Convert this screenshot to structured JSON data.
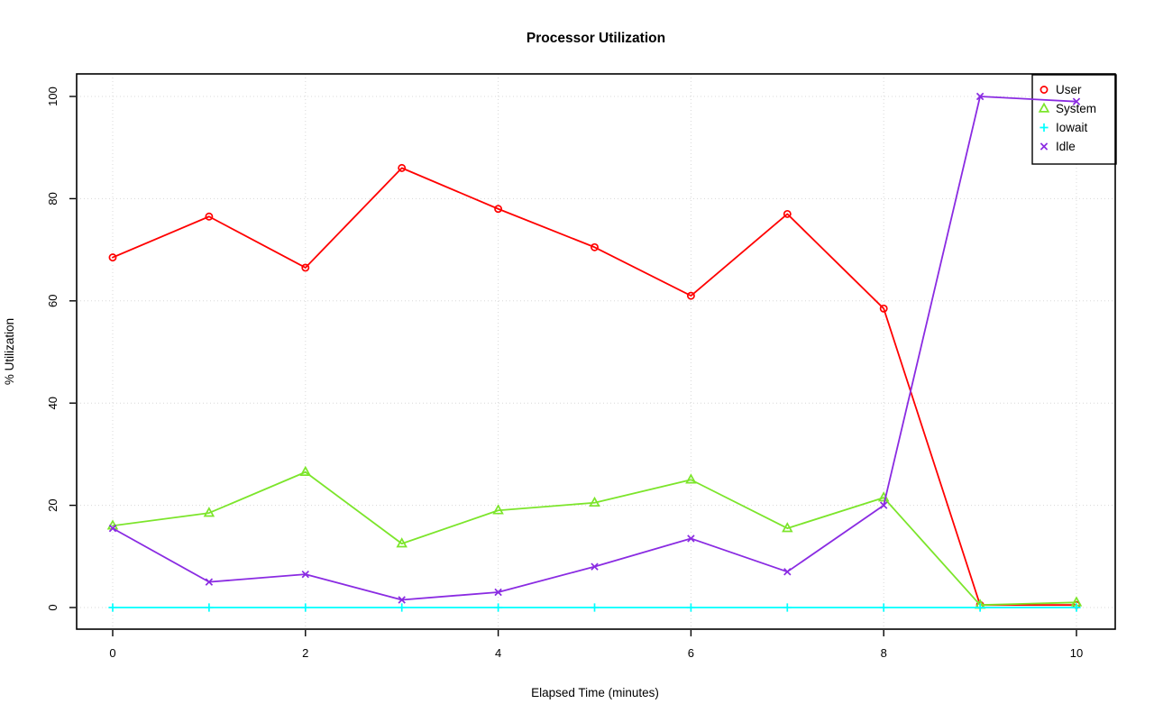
{
  "page": {
    "background": "#ffffff",
    "plot_border_color": "#000000",
    "grid_color": "#d8d8d8"
  },
  "chart_data": {
    "type": "line",
    "title": "Processor Utilization",
    "xlabel": "Elapsed Time (minutes)",
    "ylabel": "% Utilization",
    "x": [
      0,
      1,
      2,
      3,
      4,
      5,
      6,
      7,
      8,
      9,
      10
    ],
    "xticks": [
      0,
      2,
      4,
      6,
      8,
      10
    ],
    "yticks": [
      0,
      20,
      40,
      60,
      80,
      100
    ],
    "xlim": [
      0,
      10
    ],
    "ylim": [
      0,
      100
    ],
    "grid": true,
    "legend_position": "top-right",
    "series": [
      {
        "name": "User",
        "color": "#ff0000",
        "marker": "circle",
        "values": [
          68.5,
          76.5,
          66.5,
          86,
          78,
          70.5,
          61,
          77,
          58.5,
          0.5,
          0.5
        ]
      },
      {
        "name": "System",
        "color": "#7ce52b",
        "marker": "triangle",
        "values": [
          16,
          18.5,
          26.5,
          12.5,
          19,
          20.5,
          25,
          15.5,
          21.5,
          0.5,
          1
        ]
      },
      {
        "name": "Iowait",
        "color": "#00ffff",
        "marker": "plus",
        "values": [
          0,
          0,
          0,
          0,
          0,
          0,
          0,
          0,
          0,
          0,
          0
        ]
      },
      {
        "name": "Idle",
        "color": "#8a2be2",
        "marker": "x",
        "values": [
          15.5,
          5,
          6.5,
          1.5,
          3,
          8,
          13.5,
          7,
          20,
          100,
          99
        ]
      }
    ]
  }
}
